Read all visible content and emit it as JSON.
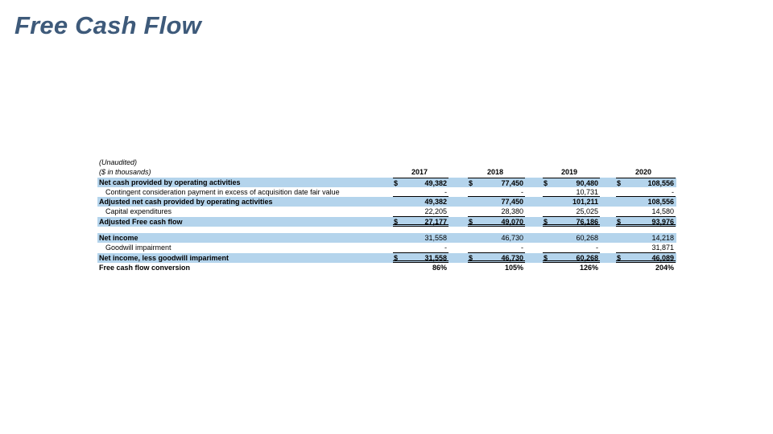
{
  "title": "Free Cash Flow",
  "notes": [
    "(Unaudited)",
    "($ in thousands)"
  ],
  "years": [
    "2017",
    "2018",
    "2019",
    "2020"
  ],
  "rows": [
    {
      "label": "Net cash provided by operating activities",
      "dollar": "$",
      "values": [
        "49,382",
        "77,450",
        "90,480",
        "108,556"
      ]
    },
    {
      "label": "Contingent consideration payment in excess of acquisition date fair value",
      "values": [
        "-",
        "-",
        "10,731",
        "-"
      ]
    },
    {
      "label": "Adjusted net cash provided by operating activities",
      "values": [
        "49,382",
        "77,450",
        "101,211",
        "108,556"
      ]
    },
    {
      "label": "Capital expenditures",
      "values": [
        "22,205",
        "28,380",
        "25,025",
        "14,580"
      ]
    },
    {
      "label": "Adjusted Free cash flow",
      "dollar": "$",
      "values": [
        "27,177",
        "49,070",
        "76,186",
        "93,976"
      ]
    },
    {
      "label": "Net income",
      "values": [
        "31,558",
        "46,730",
        "60,268",
        "14,218"
      ]
    },
    {
      "label": "Goodwill impairment",
      "values": [
        "-",
        "-",
        "-",
        "31,871"
      ]
    },
    {
      "label": "Net income, less goodwill impariment",
      "dollar": "$",
      "values": [
        "31,558",
        "46,730",
        "60,268",
        "46,089"
      ]
    },
    {
      "label": "Free cash flow conversion",
      "values": [
        "86%",
        "105%",
        "126%",
        "204%"
      ]
    }
  ]
}
